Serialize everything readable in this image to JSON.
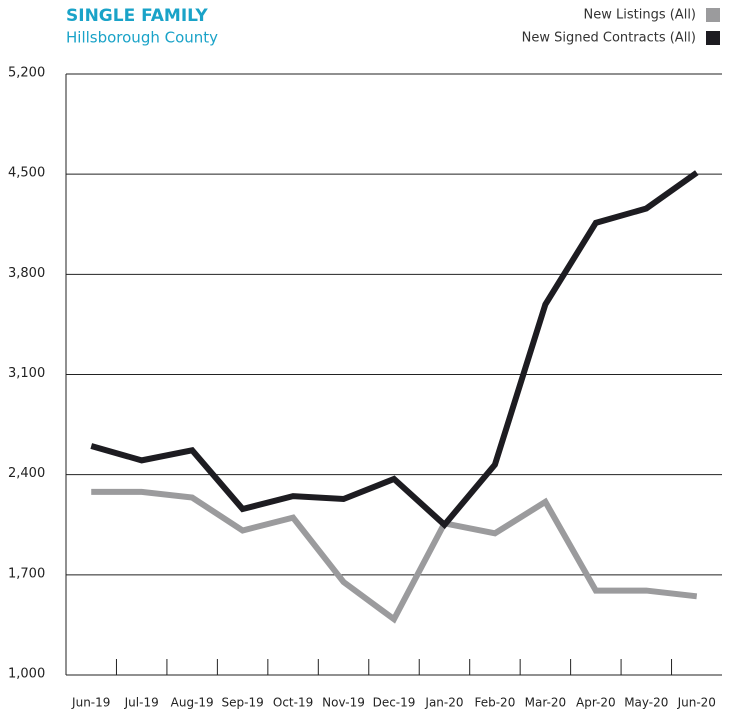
{
  "chart_data": {
    "type": "line",
    "title": "SINGLE FAMILY",
    "subtitle": "Hillsborough County",
    "categories": [
      "Jun-19",
      "Jul-19",
      "Aug-19",
      "Sep-19",
      "Oct-19",
      "Nov-19",
      "Dec-19",
      "Jan-20",
      "Feb-20",
      "Mar-20",
      "Apr-20",
      "May-20",
      "Jun-20"
    ],
    "series": [
      {
        "name": "New Listings (All)",
        "color": "#9b9b9d",
        "values": [
          2280,
          2280,
          2240,
          2010,
          2100,
          1650,
          1390,
          2060,
          1990,
          2210,
          1590,
          1590,
          1550
        ]
      },
      {
        "name": "New Signed Contracts (All)",
        "color": "#1d1c21",
        "values": [
          2600,
          2500,
          2570,
          2160,
          2250,
          2230,
          2370,
          2050,
          2470,
          3590,
          4160,
          4260,
          4510
        ]
      }
    ],
    "ylim": [
      1000,
      5200
    ],
    "yticks": [
      {
        "value": 1000,
        "label": "1,000"
      },
      {
        "value": 1700,
        "label": "1,700"
      },
      {
        "value": 2400,
        "label": "2,400"
      },
      {
        "value": 3100,
        "label": "3,100"
      },
      {
        "value": 3800,
        "label": "3,800"
      },
      {
        "value": 4500,
        "label": "4,500"
      },
      {
        "value": 5200,
        "label": "5,200"
      }
    ],
    "grid": true,
    "legend": "top-right"
  }
}
